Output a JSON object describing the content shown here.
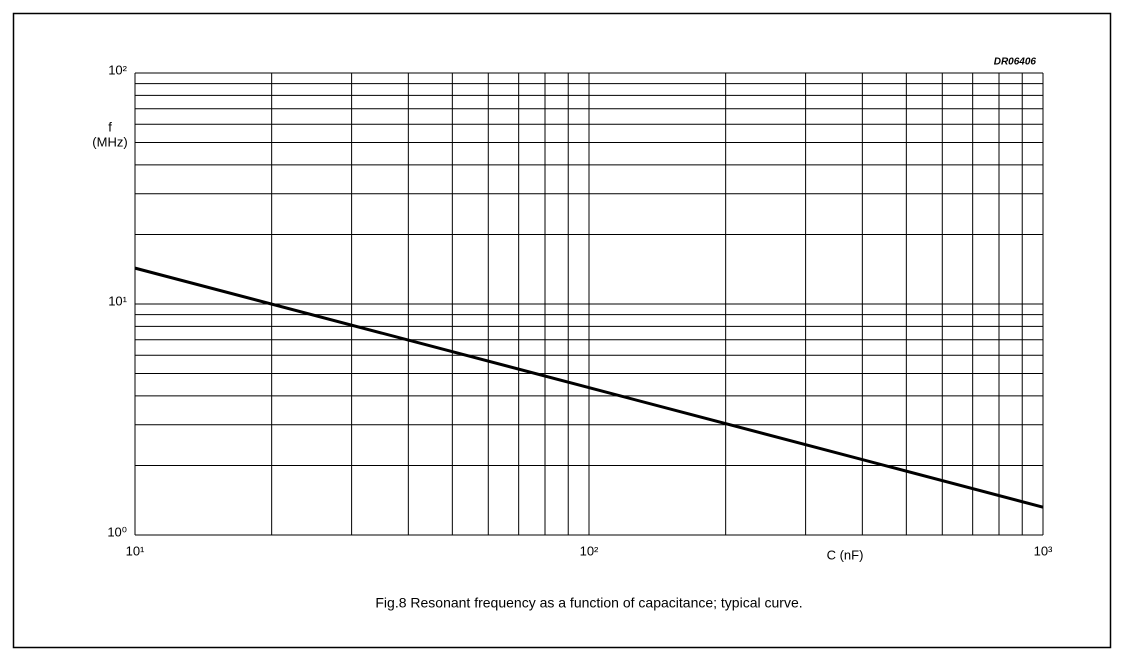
{
  "chart_data": {
    "type": "line",
    "code": "DR06406",
    "ylabel": [
      "f",
      "(MHz)"
    ],
    "xlabel": "C (nF)",
    "caption": "Fig.8  Resonant frequency as a function of capacitance; typical curve.",
    "xscale": "log",
    "yscale": "log",
    "grid": true,
    "xlim": [
      10,
      1000
    ],
    "ylim": [
      1,
      100
    ],
    "xticks": [
      {
        "value": 10,
        "label": "10¹"
      },
      {
        "value": 100,
        "label": "10²"
      },
      {
        "value": 1000,
        "label": "10³"
      }
    ],
    "yticks": [
      {
        "value": 1,
        "label": "10⁰"
      },
      {
        "value": 10,
        "label": "10¹"
      },
      {
        "value": 100,
        "label": "10²"
      }
    ],
    "xminor": [
      20,
      30,
      40,
      50,
      60,
      70,
      80,
      90,
      200,
      300,
      400,
      500,
      600,
      700,
      800,
      900
    ],
    "yminor": [
      2,
      3,
      4,
      5,
      6,
      7,
      8,
      9,
      20,
      30,
      40,
      50,
      60,
      70,
      80,
      90
    ],
    "x": [
      10,
      1000
    ],
    "series": [
      {
        "color": "#000000",
        "values": [
          14.3,
          1.32
        ]
      }
    ]
  }
}
